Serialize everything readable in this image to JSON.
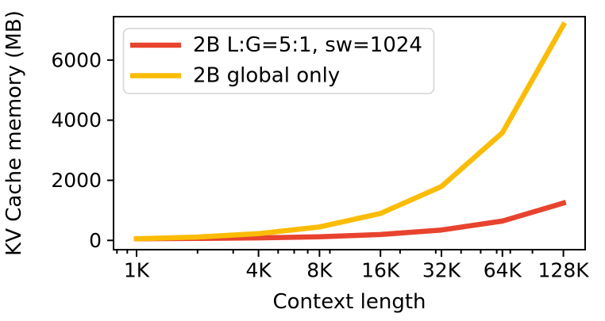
{
  "chart_data": {
    "type": "line",
    "title": "",
    "xlabel": "Context length",
    "ylabel": "KV Cache memory (MB)",
    "x_scale": "log2",
    "x": [
      1,
      2,
      4,
      8,
      16,
      32,
      64,
      128
    ],
    "x_unit": "K tokens",
    "series": [
      {
        "name": "2B L:G=5:1, sw=1024",
        "color": "#e8432e",
        "values": [
          56,
          65,
          84,
          121,
          196,
          345,
          644,
          1241
        ]
      },
      {
        "name": "2B global only",
        "color": "#fbbc05",
        "values": [
          56,
          112,
          224,
          448,
          896,
          1792,
          3584,
          7168
        ]
      }
    ],
    "x_major_ticks": [
      1,
      4,
      8,
      16,
      32,
      64,
      128
    ],
    "x_tick_labels": [
      "1K",
      "4K",
      "8K",
      "16K",
      "32K",
      "64K",
      "128K"
    ],
    "x_minor_ticks": [
      0.8,
      0.9,
      2,
      3,
      5,
      6,
      7,
      9,
      20,
      30,
      40,
      50,
      60,
      70,
      90
    ],
    "y_major_ticks": [
      0,
      2000,
      4000,
      6000
    ],
    "y_tick_labels": [
      "0",
      "2000",
      "4000",
      "6000"
    ],
    "ylim": [
      -310,
      7450
    ],
    "xlim_log2": [
      -0.38,
      7.36
    ],
    "grid": false,
    "legend_position": "upper left",
    "axis_color": "#000000",
    "legend_border_color": "#d9d9d9",
    "background_color": "#ffffff"
  }
}
